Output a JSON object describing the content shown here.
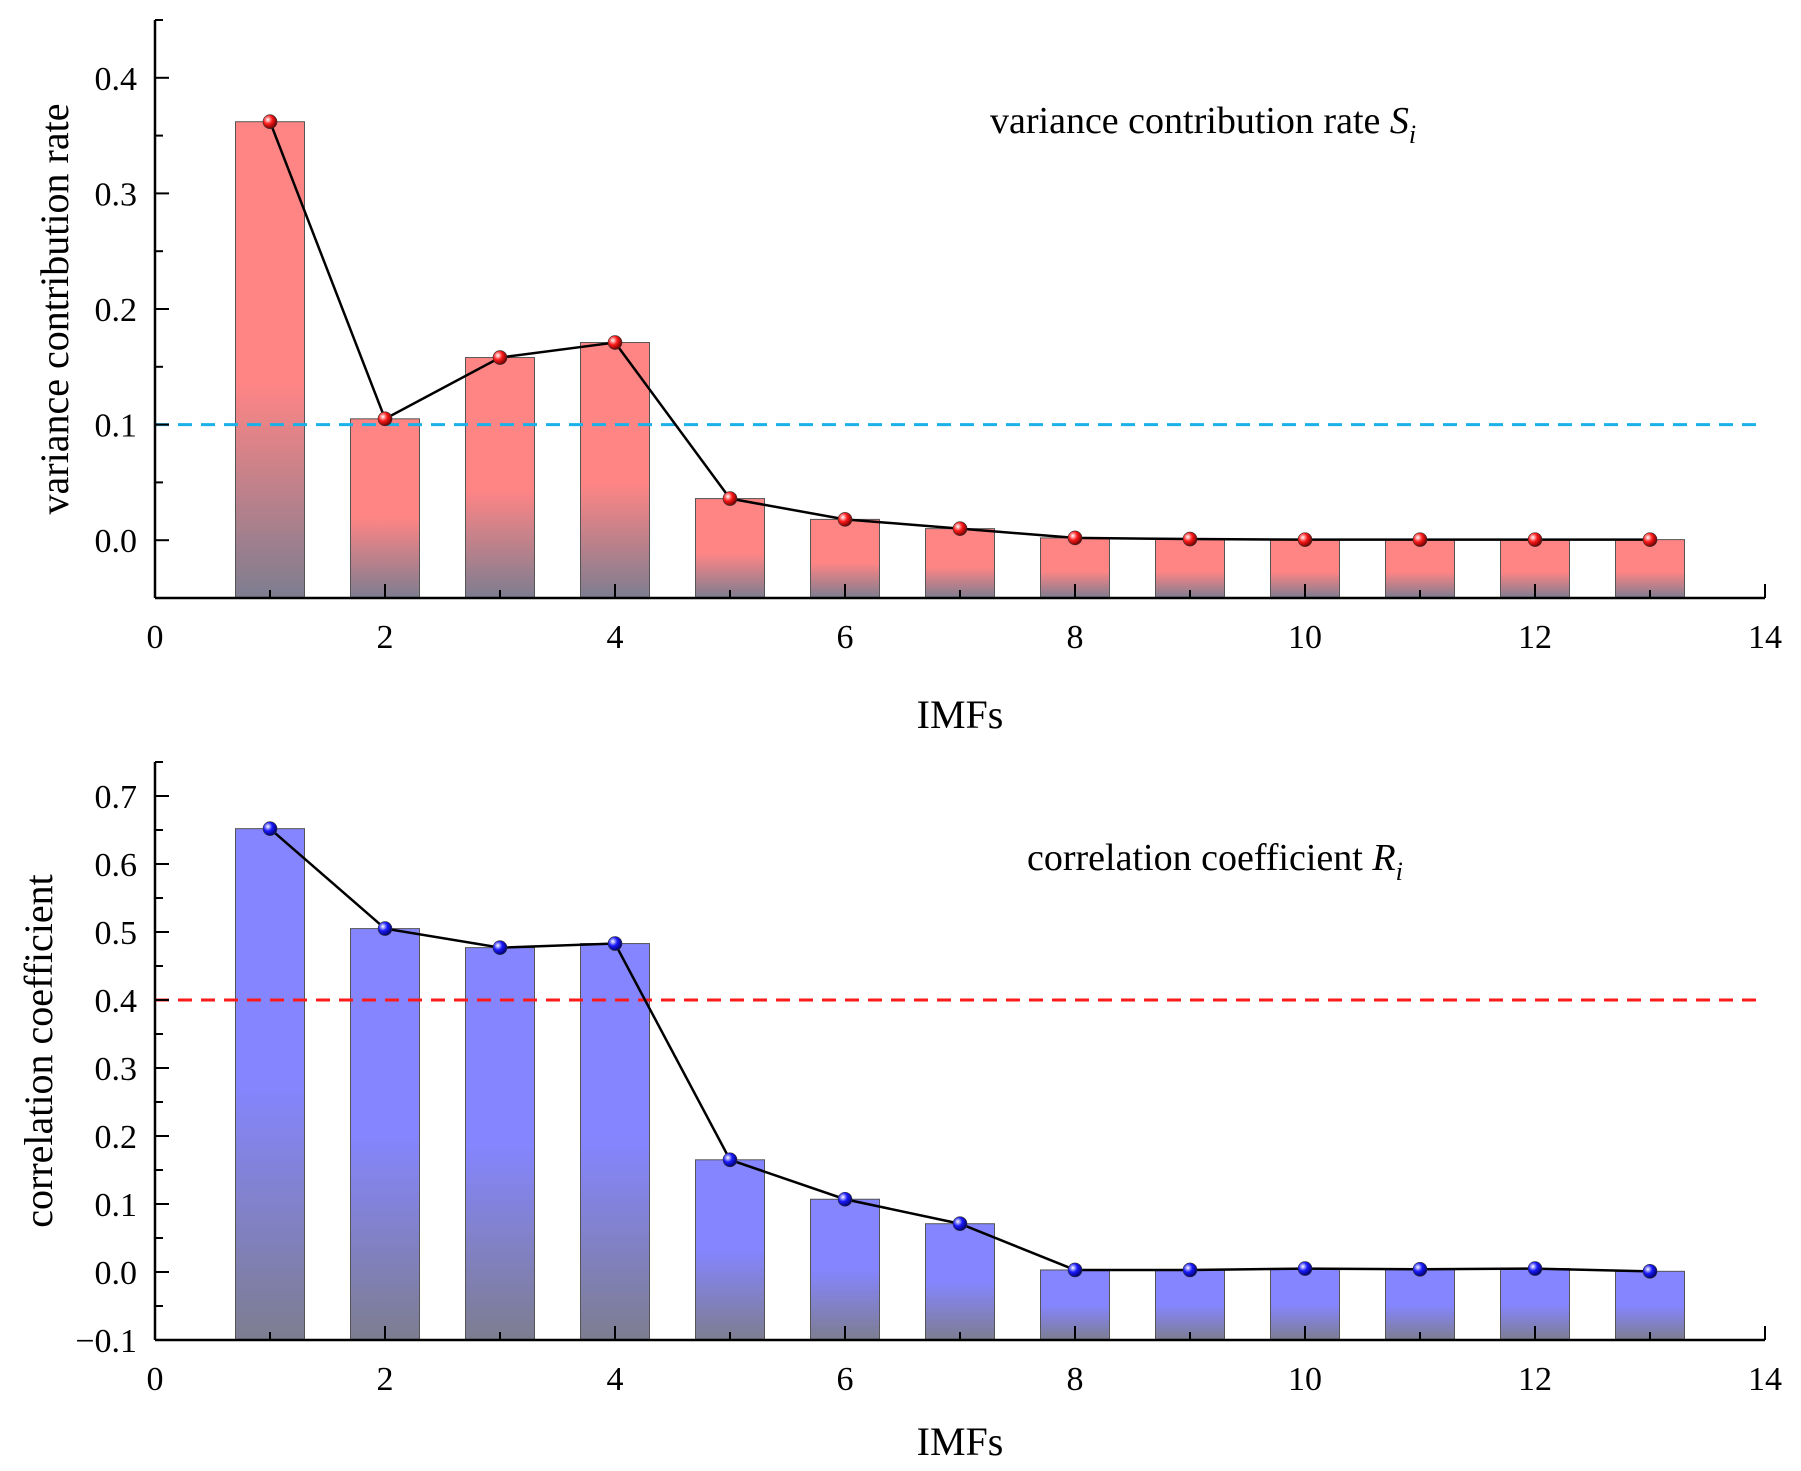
{
  "chart_data": [
    {
      "type": "bar",
      "id": "variance",
      "x": [
        1,
        2,
        3,
        4,
        5,
        6,
        7,
        8,
        9,
        10,
        11,
        12,
        13
      ],
      "values": [
        0.362,
        0.105,
        0.158,
        0.171,
        0.036,
        0.018,
        0.01,
        0.002,
        0.001,
        0.0005,
        0.0005,
        0.0005,
        0.0005
      ],
      "line_overlay": true,
      "xlabel": "IMFs",
      "ylabel": "variance contribution rate",
      "annotation": {
        "text": "variance contribution rate ",
        "symbol": "S",
        "subscript": "i"
      },
      "xlim": [
        0,
        14
      ],
      "ylim": [
        -0.05,
        0.45
      ],
      "xticks": [
        0,
        2,
        4,
        6,
        8,
        10,
        12,
        14
      ],
      "xtick_labels": [
        "0",
        "2",
        "4",
        "6",
        "8",
        "10",
        "12",
        "14"
      ],
      "yticks": [
        0.0,
        0.1,
        0.2,
        0.3,
        0.4
      ],
      "ytick_labels": [
        "0.0",
        "0.1",
        "0.2",
        "0.3",
        "0.4"
      ],
      "threshold": 0.1,
      "threshold_color": "#1ab0e8",
      "bar_color_top": "#ff8585",
      "bar_color_bottom": "#7d7d90",
      "marker_color": "#ff1a1a",
      "grid": false
    },
    {
      "type": "bar",
      "id": "correlation",
      "x": [
        1,
        2,
        3,
        4,
        5,
        6,
        7,
        8,
        9,
        10,
        11,
        12,
        13
      ],
      "values": [
        0.652,
        0.505,
        0.477,
        0.483,
        0.165,
        0.107,
        0.071,
        0.003,
        0.003,
        0.005,
        0.004,
        0.005,
        0.001
      ],
      "line_overlay": true,
      "xlabel": "IMFs",
      "ylabel": "correlation coefficient",
      "annotation": {
        "text": "correlation coefficient ",
        "symbol": "R",
        "subscript": "i"
      },
      "xlim": [
        0,
        14
      ],
      "ylim": [
        -0.1,
        0.75
      ],
      "xticks": [
        0,
        2,
        4,
        6,
        8,
        10,
        12,
        14
      ],
      "xtick_labels": [
        "0",
        "2",
        "4",
        "6",
        "8",
        "10",
        "12",
        "14"
      ],
      "yticks": [
        -0.1,
        0.0,
        0.1,
        0.2,
        0.3,
        0.4,
        0.5,
        0.6,
        0.7
      ],
      "ytick_labels": [
        "−0.1",
        "0.0",
        "0.1",
        "0.2",
        "0.3",
        "0.4",
        "0.5",
        "0.6",
        "0.7"
      ],
      "threshold": 0.4,
      "threshold_color": "#ff1a1a",
      "bar_color_top": "#8585ff",
      "bar_color_bottom": "#7d7d90",
      "marker_color": "#1a1aff",
      "grid": false
    }
  ]
}
